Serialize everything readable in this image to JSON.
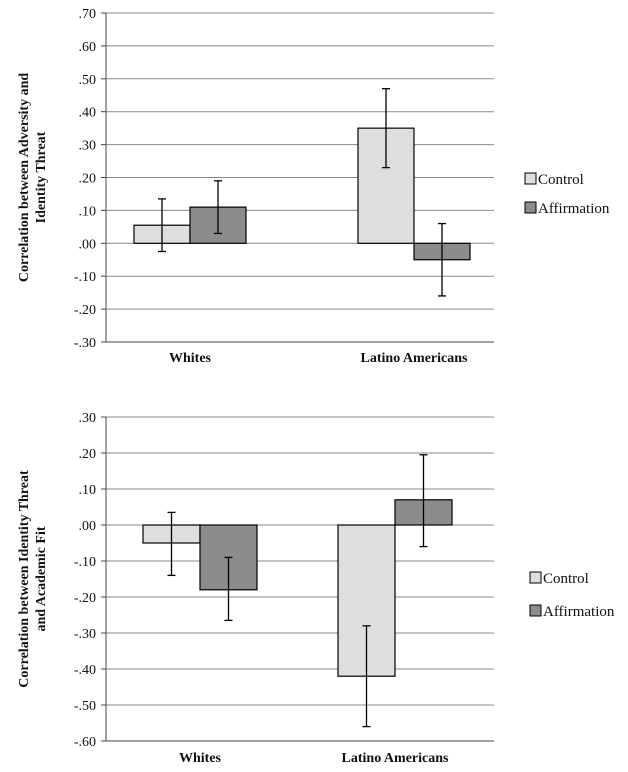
{
  "chart_data": [
    {
      "type": "bar",
      "ylabel": [
        "Correlation between Adversity and",
        "Identity Threat"
      ],
      "categories": [
        "Whites",
        "Latino Americans"
      ],
      "ylim": [
        -0.3,
        0.7
      ],
      "yticks": [
        0.7,
        0.6,
        0.5,
        0.4,
        0.3,
        0.2,
        0.1,
        0.0,
        -0.1,
        -0.2,
        -0.3
      ],
      "ytick_labels": [
        ".70",
        ".60",
        ".50",
        ".40",
        ".30",
        ".20",
        ".10",
        ".00",
        "-.10",
        "-.20",
        "-.30"
      ],
      "grid": true,
      "legend_position": "right",
      "series": [
        {
          "name": "Control",
          "color": "#dedede",
          "values": [
            0.055,
            0.35
          ],
          "err_low": [
            -0.025,
            0.23
          ],
          "err_high": [
            0.135,
            0.47
          ]
        },
        {
          "name": "Affirmation",
          "color": "#8c8c8c",
          "values": [
            0.11,
            -0.05
          ],
          "err_low": [
            0.03,
            -0.16
          ],
          "err_high": [
            0.19,
            0.06
          ]
        }
      ]
    },
    {
      "type": "bar",
      "ylabel": [
        "Correlation between Identity Threat",
        "and Academic Fit"
      ],
      "categories": [
        "Whites",
        "Latino Americans"
      ],
      "ylim": [
        -0.6,
        0.3
      ],
      "yticks": [
        0.3,
        0.2,
        0.1,
        0.0,
        -0.1,
        -0.2,
        -0.3,
        -0.4,
        -0.5,
        -0.6
      ],
      "ytick_labels": [
        ".30",
        ".20",
        ".10",
        ".00",
        "-.10",
        "-.20",
        "-.30",
        "-.40",
        "-.50",
        "-.60"
      ],
      "grid": true,
      "legend_position": "right",
      "series": [
        {
          "name": "Control",
          "color": "#dedede",
          "values": [
            -0.05,
            -0.42
          ],
          "err_low": [
            -0.14,
            -0.56
          ],
          "err_high": [
            0.035,
            -0.28
          ]
        },
        {
          "name": "Affirmation",
          "color": "#8c8c8c",
          "values": [
            -0.18,
            0.07
          ],
          "err_low": [
            -0.265,
            -0.06
          ],
          "err_high": [
            -0.09,
            0.195
          ]
        }
      ]
    }
  ]
}
